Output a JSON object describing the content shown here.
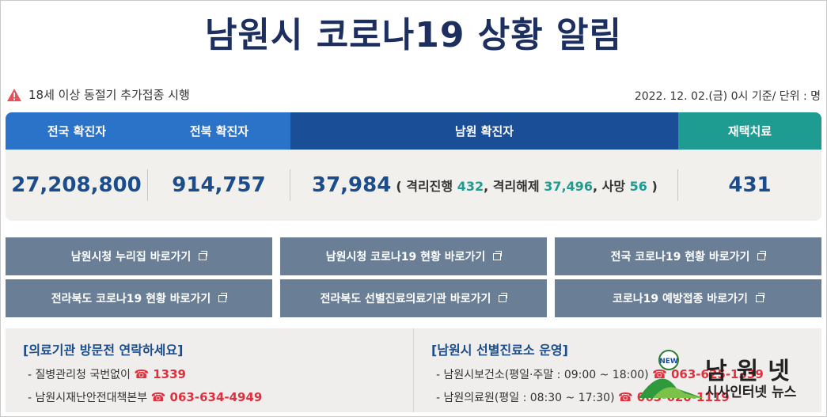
{
  "title": "남원시 코로나19 상황 알림",
  "notice": {
    "icon": "warning-triangle-icon",
    "text": "18세 이상 동절기 추가접종 시행"
  },
  "date_line": "2022. 12. 02.(금) 0시 기준/ 단위 : 명",
  "stats": {
    "headers": {
      "nation": "전국 확진자",
      "jeonbuk": "전북 확진자",
      "namwon": "남원 확진자",
      "home": "재택치료"
    },
    "values": {
      "nation": "27,208,800",
      "jeonbuk": "914,757",
      "namwon": "37,984",
      "home": "431"
    },
    "namwon_detail": {
      "open": "( 격리진행 ",
      "isolating": "432",
      "released_label": ", 격리해제 ",
      "released": "37,496",
      "death_label": ", 사망 ",
      "death": "56",
      "close": " )"
    }
  },
  "links": [
    "남원시청 누리집 바로가기",
    "남원시청 코로나19 현황 바로가기",
    "전국 코로나19 현황 바로가기",
    "전라북도 코로나19 현황 바로가기",
    "전라북도 선별진료의료기관 바로가기",
    "코로나19 예방접종 바로가기"
  ],
  "info_left": {
    "title": "[의료기관 방문전 연락하세요]",
    "line1_label": "- 질병관리청 국번없이 ",
    "line1_phone": "☎ 1339",
    "line2_label": "- 남원시재난안전대책본부 ",
    "line2_phone": "☎ 063-634-4949"
  },
  "info_right": {
    "title": "[남원시 선별진료소 운영]",
    "line1_label": "- 남원시보건소(평일·주말 : 09:00 ~ 18:00) ",
    "line1_phone": "☎ 063-625-1339",
    "line2_label": "- 남원의료원(평일 : 08:30 ~ 17:30) ",
    "line2_phone": "☎ 063-620-1119"
  },
  "watermark": {
    "name": "남원넷",
    "sub": "시사인터넷 뉴스",
    "badge": "NEW"
  },
  "colors": {
    "title": "#1c2f5f",
    "accent_blue": "#2b73c8",
    "dark_blue": "#1a4f97",
    "teal": "#1f9c92",
    "button": "#6a7f96",
    "phone_red": "#e0303e"
  }
}
